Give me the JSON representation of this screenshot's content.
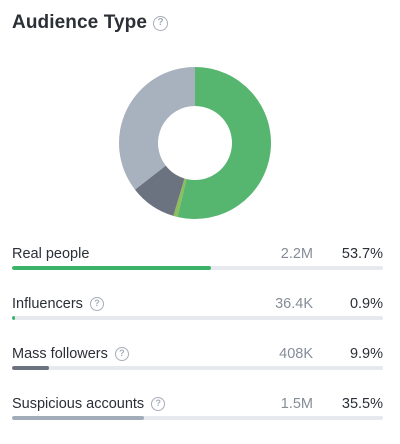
{
  "header": {
    "title": "Audience Type",
    "help_icon": "question-circle-icon"
  },
  "chart_data": {
    "type": "pie",
    "title": "",
    "categories": [
      "Real people",
      "Influencers",
      "Mass followers",
      "Suspicious accounts"
    ],
    "values": [
      53.7,
      0.9,
      9.9,
      35.5
    ],
    "colors": [
      "#56b66f",
      "#8dbd5c",
      "#6b7280",
      "#a8b1be"
    ],
    "donut": true
  },
  "metrics": [
    {
      "label": "Real people",
      "count": "2.2M",
      "percent": "53.7%",
      "fraction": 0.537,
      "color": "#3bb36a",
      "help": false
    },
    {
      "label": "Influencers",
      "count": "36.4K",
      "percent": "0.9%",
      "fraction": 0.009,
      "color": "#3bb36a",
      "help": true
    },
    {
      "label": "Mass followers",
      "count": "408K",
      "percent": "9.9%",
      "fraction": 0.099,
      "color": "#6b7280",
      "help": true
    },
    {
      "label": "Suspicious accounts",
      "count": "1.5M",
      "percent": "35.5%",
      "fraction": 0.355,
      "color": "#a3acb9",
      "help": true
    }
  ]
}
